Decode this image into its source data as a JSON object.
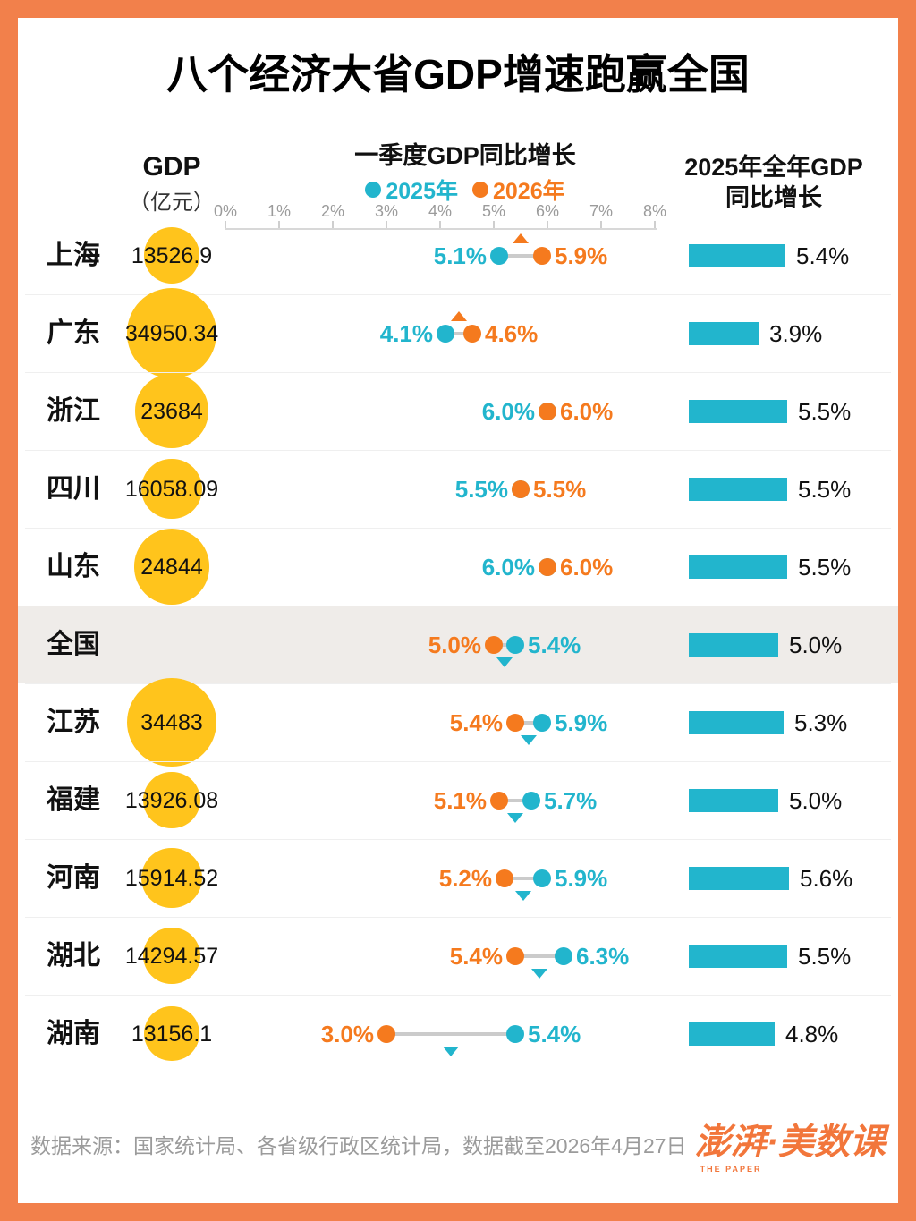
{
  "title": "八个经济大省GDP增速跑赢全国",
  "colors": {
    "frame_orange": "#F2804B",
    "bubble_yellow": "#FFC41C",
    "cyan_2025": "#22B5CD",
    "orange_2026": "#F57A1E",
    "highlight_row": "#EFECE9",
    "bar_cyan": "#22B5CD"
  },
  "chart_data": {
    "type": "dumbbell+bar",
    "left_column": {
      "label": "GDP",
      "unit": "（亿元）"
    },
    "dot_plot": {
      "title": "一季度GDP同比增长",
      "legend": [
        {
          "label": "2025年"
        },
        {
          "label": "2026年"
        }
      ],
      "axis": {
        "min": 0,
        "max": 8,
        "unit": "%",
        "ticks": [
          "0%",
          "1%",
          "2%",
          "3%",
          "4%",
          "5%",
          "6%",
          "7%",
          "8%"
        ]
      }
    },
    "bar_chart": {
      "title_line1": "2025年全年GDP",
      "title_line2": "同比增长"
    },
    "rows": [
      {
        "name": "上海",
        "gdp": 13526.9,
        "gdp_label": "13526.9",
        "q1_2025": 5.1,
        "q1_2025_label": "5.1%",
        "q1_2026": 5.9,
        "q1_2026_label": "5.9%",
        "bar_2025": 5.4,
        "bar_label": "5.4%",
        "highlight": false
      },
      {
        "name": "广东",
        "gdp": 34950.34,
        "gdp_label": "34950.34",
        "q1_2025": 4.1,
        "q1_2025_label": "4.1%",
        "q1_2026": 4.6,
        "q1_2026_label": "4.6%",
        "bar_2025": 3.9,
        "bar_label": "3.9%",
        "highlight": false
      },
      {
        "name": "浙江",
        "gdp": 23684,
        "gdp_label": "23684",
        "q1_2025": 6.0,
        "q1_2025_label": "6.0%",
        "q1_2026": 6.0,
        "q1_2026_label": "6.0%",
        "bar_2025": 5.5,
        "bar_label": "5.5%",
        "highlight": false
      },
      {
        "name": "四川",
        "gdp": 16058.09,
        "gdp_label": "16058.09",
        "q1_2025": 5.5,
        "q1_2025_label": "5.5%",
        "q1_2026": 5.5,
        "q1_2026_label": "5.5%",
        "bar_2025": 5.5,
        "bar_label": "5.5%",
        "highlight": false
      },
      {
        "name": "山东",
        "gdp": 24844,
        "gdp_label": "24844",
        "q1_2025": 6.0,
        "q1_2025_label": "6.0%",
        "q1_2026": 6.0,
        "q1_2026_label": "6.0%",
        "bar_2025": 5.5,
        "bar_label": "5.5%",
        "highlight": false
      },
      {
        "name": "全国",
        "gdp": null,
        "gdp_label": "",
        "q1_2025": 5.4,
        "q1_2025_label": "5.4%",
        "q1_2026": 5.0,
        "q1_2026_label": "5.0%",
        "bar_2025": 5.0,
        "bar_label": "5.0%",
        "highlight": true
      },
      {
        "name": "江苏",
        "gdp": 34483,
        "gdp_label": "34483",
        "q1_2025": 5.9,
        "q1_2025_label": "5.9%",
        "q1_2026": 5.4,
        "q1_2026_label": "5.4%",
        "bar_2025": 5.3,
        "bar_label": "5.3%",
        "highlight": false
      },
      {
        "name": "福建",
        "gdp": 13926.08,
        "gdp_label": "13926.08",
        "q1_2025": 5.7,
        "q1_2025_label": "5.7%",
        "q1_2026": 5.1,
        "q1_2026_label": "5.1%",
        "bar_2025": 5.0,
        "bar_label": "5.0%",
        "highlight": false
      },
      {
        "name": "河南",
        "gdp": 15914.52,
        "gdp_label": "15914.52",
        "q1_2025": 5.9,
        "q1_2025_label": "5.9%",
        "q1_2026": 5.2,
        "q1_2026_label": "5.2%",
        "bar_2025": 5.6,
        "bar_label": "5.6%",
        "highlight": false
      },
      {
        "name": "湖北",
        "gdp": 14294.57,
        "gdp_label": "14294.57",
        "q1_2025": 6.3,
        "q1_2025_label": "6.3%",
        "q1_2026": 5.4,
        "q1_2026_label": "5.4%",
        "bar_2025": 5.5,
        "bar_label": "5.5%",
        "highlight": false
      },
      {
        "name": "湖南",
        "gdp": 13156.1,
        "gdp_label": "13156.1",
        "q1_2025": 5.4,
        "q1_2025_label": "5.4%",
        "q1_2026": 3.0,
        "q1_2026_label": "3.0%",
        "bar_2025": 4.8,
        "bar_label": "4.8%",
        "highlight": false
      }
    ]
  },
  "footer": {
    "source": "数据来源：国家统计局、各省级行政区统计局，数据截至2026年4月27日",
    "logo_main": "澎湃·美数课",
    "logo_sub": "THE PAPER"
  }
}
